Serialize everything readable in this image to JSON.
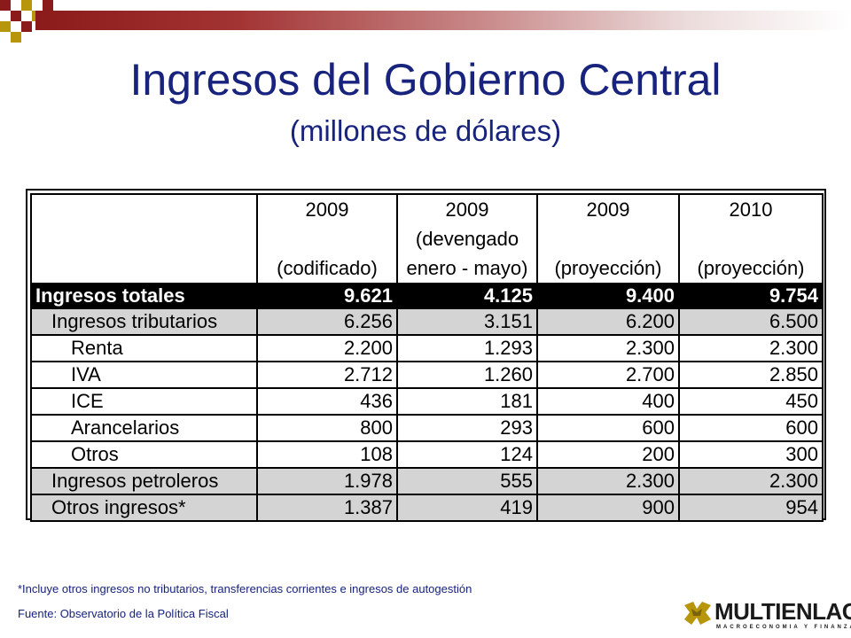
{
  "title": "Ingresos del Gobierno Central",
  "subtitle": "(millones de dólares)",
  "table": {
    "columns": [
      {
        "line1": "2009",
        "line2": "",
        "line3": "(codificado)"
      },
      {
        "line1": "2009",
        "line2": "(devengado",
        "line3": "enero - mayo)"
      },
      {
        "line1": "2009",
        "line2": "",
        "line3": "(proyección)"
      },
      {
        "line1": "2010",
        "line2": "",
        "line3": "(proyección)"
      }
    ],
    "rows": [
      {
        "label": "Ingresos totales",
        "values": [
          "9.621",
          "4.125",
          "9.400",
          "9.754"
        ]
      },
      {
        "label": "Ingresos tributarios",
        "values": [
          "6.256",
          "3.151",
          "6.200",
          "6.500"
        ]
      },
      {
        "label": "Renta",
        "values": [
          "2.200",
          "1.293",
          "2.300",
          "2.300"
        ]
      },
      {
        "label": "IVA",
        "values": [
          "2.712",
          "1.260",
          "2.700",
          "2.850"
        ]
      },
      {
        "label": "ICE",
        "values": [
          "436",
          "181",
          "400",
          "450"
        ]
      },
      {
        "label": "Arancelarios",
        "values": [
          "800",
          "293",
          "600",
          "600"
        ]
      },
      {
        "label": "Otros",
        "values": [
          "108",
          "124",
          "200",
          "300"
        ]
      },
      {
        "label": "Ingresos petroleros",
        "values": [
          "1.978",
          "555",
          "2.300",
          "2.300"
        ]
      },
      {
        "label": "Otros ingresos*",
        "values": [
          "1.387",
          "419",
          "900",
          "954"
        ]
      }
    ]
  },
  "footnote": "*Incluye otros ingresos no tributarios, transferencias corrientes e ingresos de autogestión",
  "source": "Fuente: Observatorio de la Política Fiscal",
  "logo": {
    "name": "MULTIENLACE",
    "tagline": "MACROECONOMIA Y FINANZAS"
  },
  "colors": {
    "title": "#17237c",
    "header_bar": "#8b1a1a",
    "accent_gold": "#b8960c",
    "row_gray": "#d4d4d4",
    "total_row": "#000000"
  }
}
